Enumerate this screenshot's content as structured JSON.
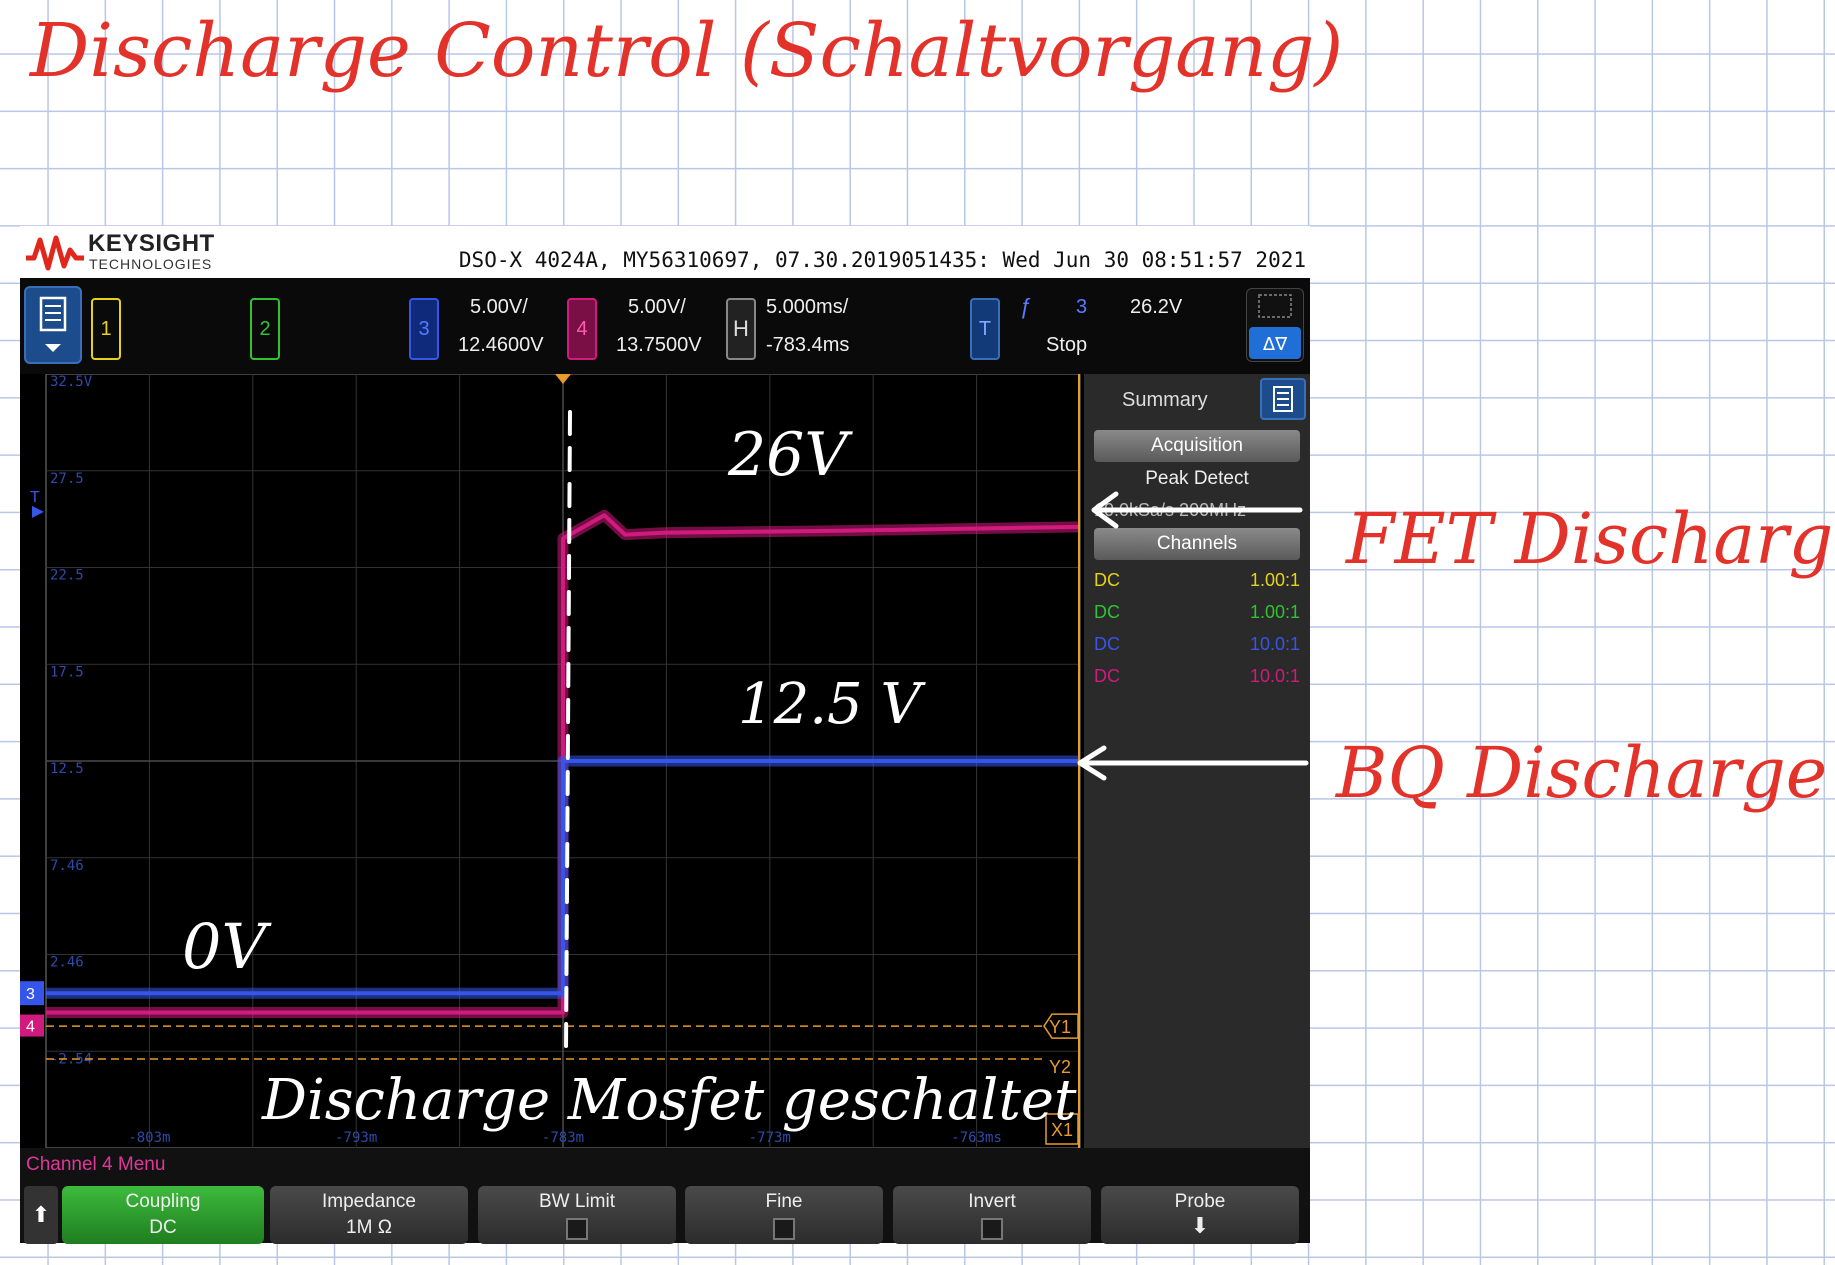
{
  "annotations": {
    "title": "Discharge Control (Schaltvorgang)",
    "fet_label": "FET Discharge",
    "bq_label": "BQ Discharge",
    "v26": "26V",
    "v125": "12.5 V",
    "v0": "0V",
    "switch_note": "Discharge Mosfet geschaltet"
  },
  "scope": {
    "brand": "KEYSIGHT",
    "brand_sub": "TECHNOLOGIES",
    "info": "DSO-X 4024A, MY56310697, 07.30.2019051435: Wed Jun 30 08:51:57 2021",
    "channels": {
      "ch1_label": "1",
      "ch2_label": "2",
      "ch3_label": "3",
      "ch3_scale": "5.00V/",
      "ch3_offset": "12.4600V",
      "ch4_label": "4",
      "ch4_scale": "5.00V/",
      "ch4_offset": "13.7500V"
    },
    "horizontal": {
      "label": "H",
      "scale": "5.000ms/",
      "position": "-783.4ms"
    },
    "trigger": {
      "label": "T",
      "edge_symbol": "ƒ",
      "source": "3",
      "level": "26.2V",
      "state": "Stop"
    },
    "grid_labels": [
      "32.5V",
      "27.5",
      "22.5",
      "17.5",
      "12.5",
      "7.46",
      "2.46",
      "-2.54"
    ],
    "time_labels": [
      "-803m",
      "-793m",
      "-783m",
      "-773m",
      "-763ms"
    ],
    "markers": {
      "y1": "Y1",
      "y2": "Y2",
      "x1": "X1",
      "ch3_ref": "3",
      "ch4_ref": "4",
      "trig_marker": "T"
    },
    "colors": {
      "ch1": "#e6d21a",
      "ch2": "#2fc42f",
      "ch3": "#3556e8",
      "ch4": "#d11a7e",
      "cursor": "#e89a2a"
    }
  },
  "sidebar": {
    "title": "Summary",
    "acquisition_btn": "Acquisition",
    "mode": "Peak Detect",
    "rate": "10.0kSa/s   200MHz",
    "channels_btn": "Channels",
    "rows": [
      {
        "coupling": "DC",
        "probe": "1.00:1",
        "color": "#e6d21a"
      },
      {
        "coupling": "DC",
        "probe": "1.00:1",
        "color": "#2fc42f"
      },
      {
        "coupling": "DC",
        "probe": "10.0:1",
        "color": "#3556e8"
      },
      {
        "coupling": "DC",
        "probe": "10.0:1",
        "color": "#d11a7e"
      }
    ]
  },
  "softkeys": {
    "menu_title": "Channel 4 Menu",
    "coupling_label": "Coupling",
    "coupling_value": "DC",
    "impedance_label": "Impedance",
    "impedance_value": "1M Ω",
    "bwlimit_label": "BW Limit",
    "fine_label": "Fine",
    "invert_label": "Invert",
    "probe_label": "Probe"
  },
  "chart_data": {
    "type": "line",
    "x_unit": "ms",
    "xlim": [
      -808.4,
      -758.4
    ],
    "ylim": [
      -7.5,
      32.5
    ],
    "series": [
      {
        "x": [
          -808.4,
          -783.4,
          -783.4,
          -781.4,
          -780.4,
          -778.4,
          -770,
          -758.4
        ],
        "y": [
          -0.5,
          -0.5,
          24.0,
          25.2,
          24.2,
          24.3,
          24.4,
          24.6
        ],
        "color": "#d11a7e"
      },
      {
        "x": [
          -808.4,
          -783.4,
          -783.4,
          -770,
          -758.4
        ],
        "y": [
          0.5,
          0.5,
          12.5,
          12.5,
          12.5
        ],
        "color": "#3556e8"
      }
    ]
  }
}
